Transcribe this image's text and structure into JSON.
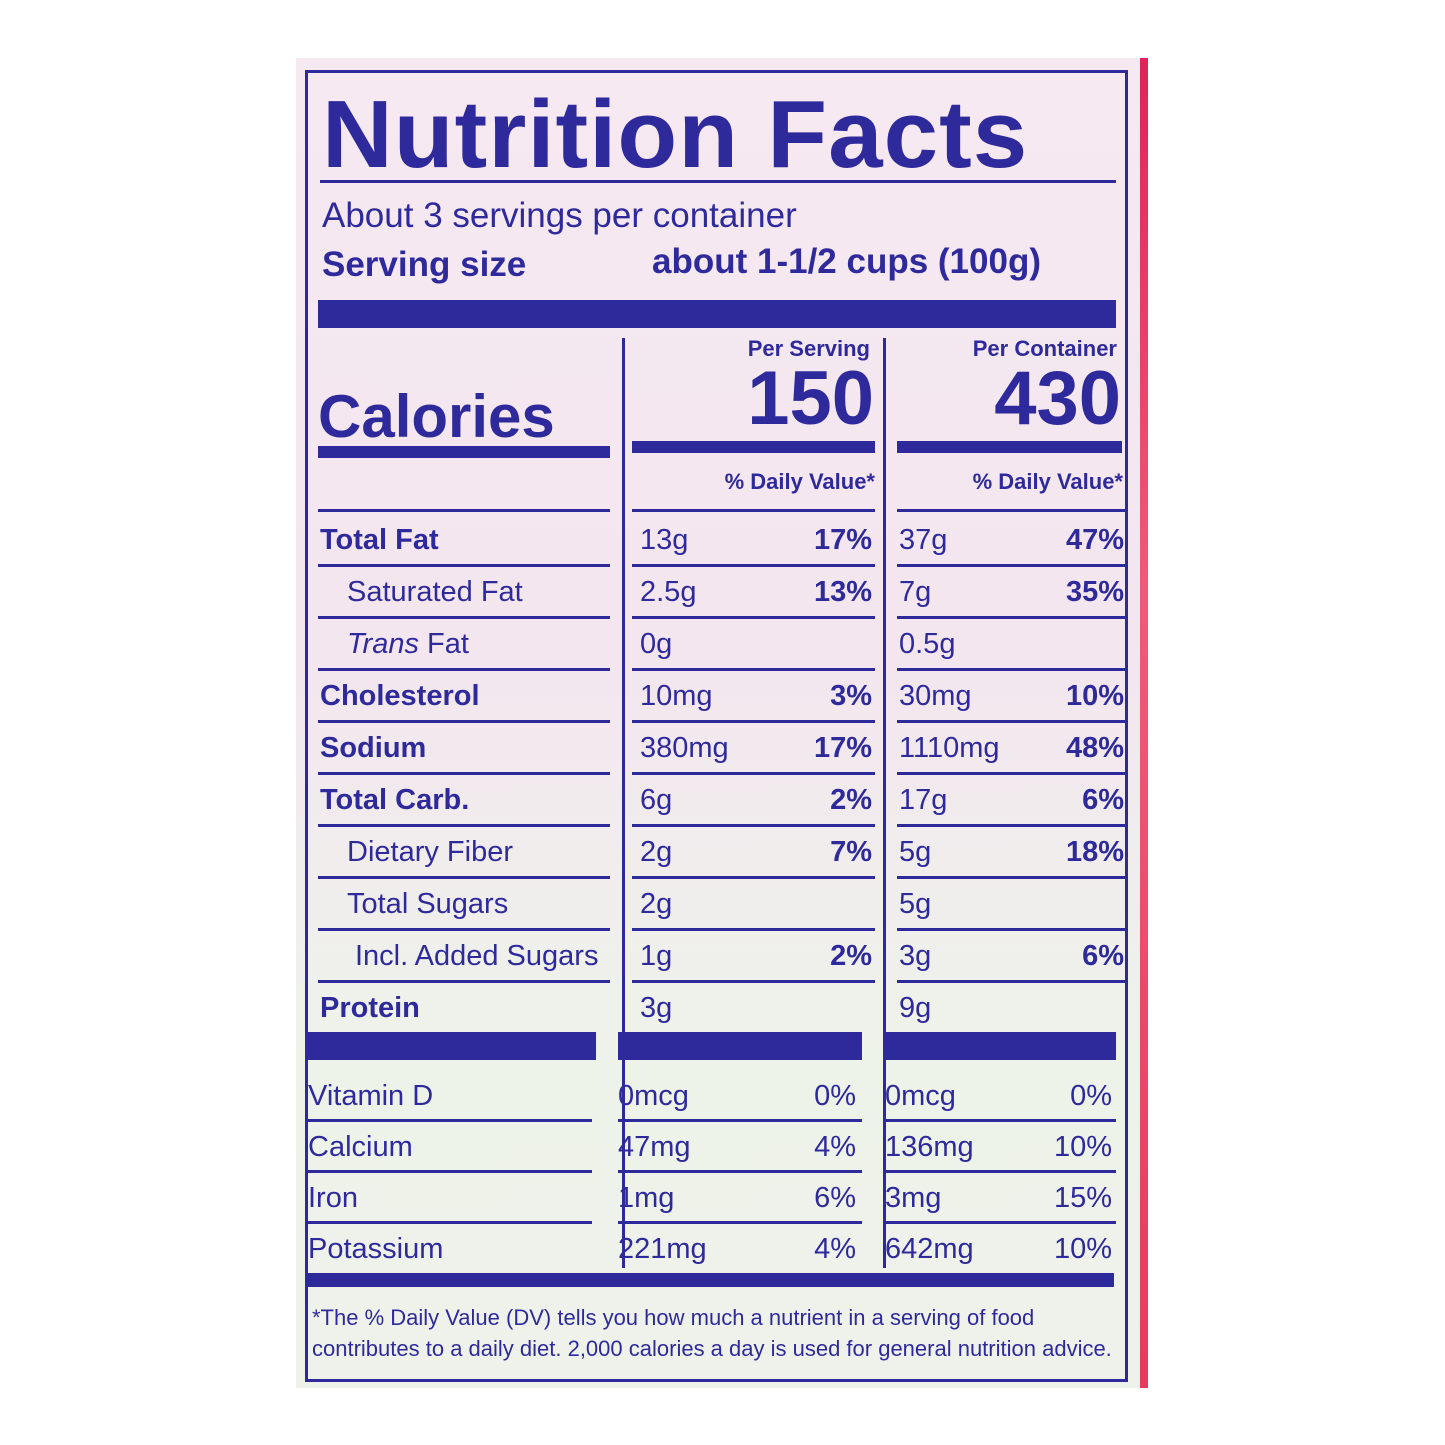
{
  "title": "Nutrition Facts",
  "servings_per_container": "About 3 servings per container",
  "serving_size_label": "Serving size",
  "serving_size_value": "about 1-1/2 cups (100g)",
  "per_serving_label": "Per Serving",
  "per_container_label": "Per Container",
  "calories_label": "Calories",
  "calories_per_serving": "150",
  "calories_per_container": "430",
  "daily_value_label": "% Daily Value*",
  "nutrients": [
    {
      "name": "Total Fat",
      "bold": true,
      "indent": 0,
      "serving": "13g",
      "serving_dv": "17%",
      "container": "37g",
      "container_dv": "47%"
    },
    {
      "name": "Saturated Fat",
      "bold": false,
      "indent": 1,
      "serving": "2.5g",
      "serving_dv": "13%",
      "container": "7g",
      "container_dv": "35%"
    },
    {
      "name": "Trans Fat",
      "bold": false,
      "indent": 1,
      "italic_prefix": "Trans",
      "serving": "0g",
      "serving_dv": "",
      "container": "0.5g",
      "container_dv": ""
    },
    {
      "name": "Cholesterol",
      "bold": true,
      "indent": 0,
      "serving": "10mg",
      "serving_dv": "3%",
      "container": "30mg",
      "container_dv": "10%"
    },
    {
      "name": "Sodium",
      "bold": true,
      "indent": 0,
      "serving": "380mg",
      "serving_dv": "17%",
      "container": "1110mg",
      "container_dv": "48%"
    },
    {
      "name": "Total Carb.",
      "bold": true,
      "indent": 0,
      "serving": "6g",
      "serving_dv": "2%",
      "container": "17g",
      "container_dv": "6%"
    },
    {
      "name": "Dietary Fiber",
      "bold": false,
      "indent": 1,
      "serving": "2g",
      "serving_dv": "7%",
      "container": "5g",
      "container_dv": "18%"
    },
    {
      "name": "Total Sugars",
      "bold": false,
      "indent": 1,
      "serving": "2g",
      "serving_dv": "",
      "container": "5g",
      "container_dv": ""
    },
    {
      "name": "Incl. Added Sugars",
      "bold": false,
      "indent": 2,
      "serving": "1g",
      "serving_dv": "2%",
      "container": "3g",
      "container_dv": "6%"
    },
    {
      "name": "Protein",
      "bold": true,
      "indent": 0,
      "serving": "3g",
      "serving_dv": "",
      "container": "9g",
      "container_dv": ""
    }
  ],
  "vitamins": [
    {
      "name": "Vitamin D",
      "serving": "0mcg",
      "serving_dv": "0%",
      "container": "0mcg",
      "container_dv": "0%"
    },
    {
      "name": "Calcium",
      "serving": "47mg",
      "serving_dv": "4%",
      "container": "136mg",
      "container_dv": "10%"
    },
    {
      "name": "Iron",
      "serving": "1mg",
      "serving_dv": "6%",
      "container": "3mg",
      "container_dv": "15%"
    },
    {
      "name": "Potassium",
      "serving": "221mg",
      "serving_dv": "4%",
      "container": "642mg",
      "container_dv": "10%"
    }
  ],
  "footnote": "*The % Daily Value (DV) tells you how much a nutrient in a serving of food contributes to a daily diet. 2,000 calories a day is used for general nutrition advice.",
  "colors": {
    "ink": "#2f2a9c",
    "package_edge": "#e0235a"
  }
}
